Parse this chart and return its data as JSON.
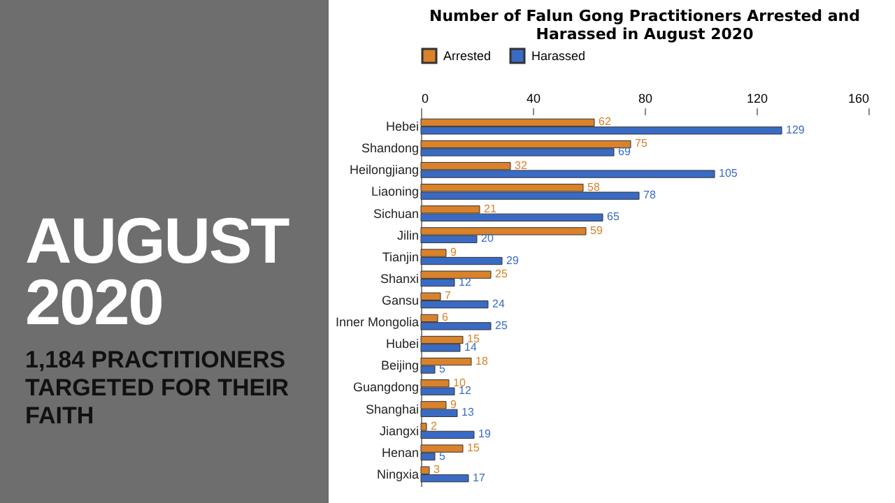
{
  "chart_data": {
    "type": "bar",
    "orientation": "horizontal",
    "title": "Number of Falun Gong Practitioners Arrested and Harassed in August 2020",
    "annotations": [
      "AUGUST 2020",
      "1,184 PRACTITIONERS TARGETED FOR THEIR FAITH"
    ],
    "categories": [
      "Hebei",
      "Shandong",
      "Heilongjiang",
      "Liaoning",
      "Sichuan",
      "Jilin",
      "Tianjin",
      "Shanxi",
      "Gansu",
      "Inner Mongolia",
      "Hubei",
      "Beijing",
      "Guangdong",
      "Shanghai",
      "Jiangxi",
      "Henan",
      "Ningxia"
    ],
    "series": [
      {
        "name": "Arrested",
        "color": "#d9822b",
        "values": [
          62,
          75,
          32,
          58,
          21,
          59,
          9,
          25,
          7,
          6,
          15,
          18,
          10,
          9,
          2,
          15,
          3
        ]
      },
      {
        "name": "Harassed",
        "color": "#3a6bc4",
        "values": [
          129,
          69,
          105,
          78,
          65,
          20,
          29,
          12,
          24,
          25,
          14,
          5,
          12,
          13,
          19,
          5,
          17
        ]
      }
    ],
    "xlim": [
      0,
      160
    ],
    "xticks": [
      0,
      40,
      80,
      120,
      160
    ],
    "data_labels": true,
    "legend": "top",
    "grid": false
  }
}
